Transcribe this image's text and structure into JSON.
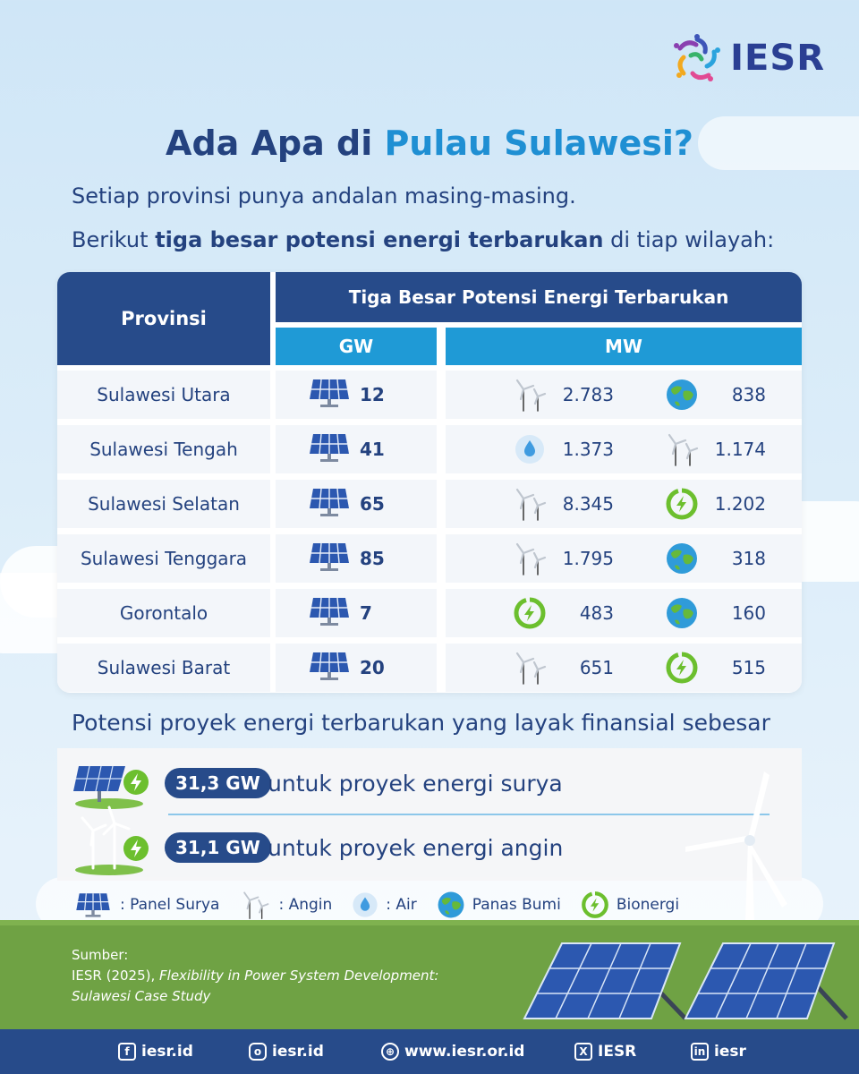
{
  "brand": {
    "logo_text": "IESR"
  },
  "title": {
    "part1": "Ada Apa di ",
    "part2": "Pulau Sulawesi?"
  },
  "subtitle1": "Setiap provinsi punya andalan masing-masing.",
  "subtitle2": {
    "pre": "Berikut ",
    "bold": "tiga besar potensi energi terbarukan",
    "post": " di tiap wilayah:"
  },
  "table": {
    "header_province": "Provinsi",
    "header_main": "Tiga Besar Potensi Energi Terbarukan",
    "header_gw": "GW",
    "header_mw": "MW",
    "rows": [
      {
        "province": "Sulawesi Utara",
        "gw": "12",
        "mw1_icon": "wind-icon",
        "mw1": "2.783",
        "mw2_icon": "geothermal-icon",
        "mw2": "838"
      },
      {
        "province": "Sulawesi Tengah",
        "gw": "41",
        "mw1_icon": "water-icon",
        "mw1": "1.373",
        "mw2_icon": "wind-icon",
        "mw2": "1.174"
      },
      {
        "province": "Sulawesi Selatan",
        "gw": "65",
        "mw1_icon": "wind-icon",
        "mw1": "8.345",
        "mw2_icon": "bioenergy-icon",
        "mw2": "1.202"
      },
      {
        "province": "Sulawesi Tenggara",
        "gw": "85",
        "mw1_icon": "wind-icon",
        "mw1": "1.795",
        "mw2_icon": "geothermal-icon",
        "mw2": "318"
      },
      {
        "province": "Gorontalo",
        "gw": "7",
        "mw1_icon": "bioenergy-icon",
        "mw1": "483",
        "mw2_icon": "geothermal-icon",
        "mw2": "160"
      },
      {
        "province": "Sulawesi Barat",
        "gw": "20",
        "mw1_icon": "wind-icon",
        "mw1": "651",
        "mw2_icon": "bioenergy-icon",
        "mw2": "515"
      }
    ]
  },
  "potensi_heading": "Potensi proyek energi terbarukan yang layak finansial sebesar",
  "projects": [
    {
      "badge": "31,3 GW",
      "text": "untuk proyek energi surya",
      "icon": "solar-project-icon"
    },
    {
      "badge": "31,1 GW",
      "text": "untuk proyek energi angin",
      "icon": "wind-project-icon"
    }
  ],
  "legend": [
    {
      "icon": "solar-panel-icon",
      "label": ": Panel Surya"
    },
    {
      "icon": "wind-icon",
      "label": ": Angin"
    },
    {
      "icon": "water-icon",
      "label": ": Air"
    },
    {
      "icon": "geothermal-icon",
      "label": "Panas Bumi"
    },
    {
      "icon": "bioenergy-icon",
      "label": "Bionergi"
    }
  ],
  "source": {
    "label": "Sumber:",
    "line1_plain": "IESR (2025), ",
    "line1_italic": "Flexibility in Power System Development:",
    "line2_italic": "Sulawesi Case Study"
  },
  "footer": [
    {
      "icon": "facebook-icon",
      "text": "iesr.id"
    },
    {
      "icon": "instagram-icon",
      "text": "iesr.id"
    },
    {
      "icon": "globe-icon",
      "text": "www.iesr.or.id"
    },
    {
      "icon": "x-icon",
      "text": "IESR"
    },
    {
      "icon": "linkedin-icon",
      "text": "iesr"
    }
  ],
  "colors": {
    "navy": "#274b8a",
    "blue": "#1f9ad6",
    "title_accent": "#1f8fd3",
    "grass": "#6fa244",
    "bio_green": "#6cbf2e"
  }
}
